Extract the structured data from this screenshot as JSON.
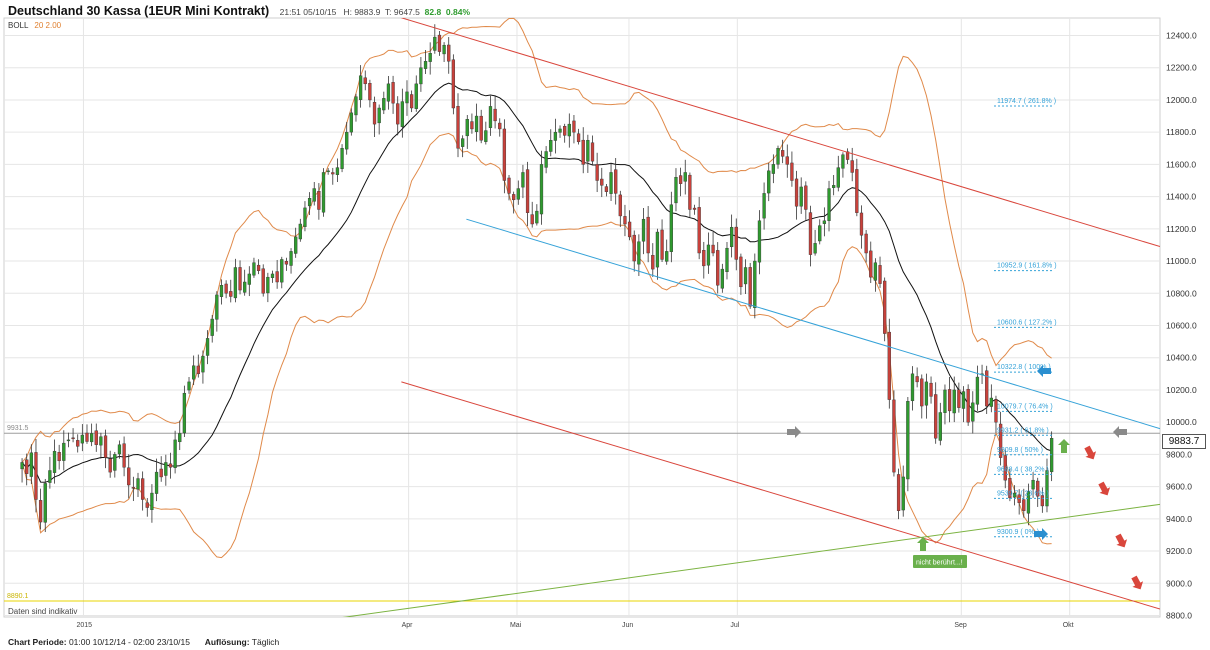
{
  "header": {
    "title": "Deutschland 30 Kassa (1EUR Mini Kontrakt)",
    "datetime": "21:51 05/10/15",
    "high": "H: 9883.9",
    "low": "T: 9647.5",
    "change": "82.8",
    "change_pct": "0.84%"
  },
  "indicator": {
    "name": "BOLL",
    "params": "20 2.00"
  },
  "footer": {
    "period_label": "Chart Periode:",
    "period_value": "01:00 10/12/14 - 02:00 23/10/15",
    "resolution_label": "Auflösung:",
    "resolution_value": "Täglich"
  },
  "notes": {
    "indicative": "Daten sind indikativ",
    "not_touched": "nicht berührt...!"
  },
  "last_price": "9883.7",
  "colors": {
    "up": "#2f9a2f",
    "down": "#c8413b",
    "boll": "#e08a4a",
    "mid": "#111111",
    "channel_red": "#d9463c",
    "channel_blue": "#35a2d8",
    "trend_green": "#7cb342",
    "level_yellow": "#e8d400",
    "fib": "#35a2d8",
    "grid": "#e6e6e6"
  },
  "chart_data": {
    "type": "candlestick",
    "y_axis": {
      "min": 8800,
      "max": 12400,
      "step": 200,
      "ticks": [
        "12400.0",
        "12200.0",
        "12000.0",
        "11800.0",
        "11600.0",
        "11400.0",
        "11200.0",
        "11000.0",
        "10800.0",
        "10600.0",
        "10400.0",
        "10200.0",
        "10000.0",
        "9800.0",
        "9600.0",
        "9400.0",
        "9200.0",
        "9000.0",
        "8800.0"
      ]
    },
    "x_axis": {
      "labels": [
        {
          "text": "2015",
          "day": 22
        },
        {
          "text": "Apr",
          "day": 112
        },
        {
          "text": "Mai",
          "day": 142
        },
        {
          "text": "Jun",
          "day": 173
        },
        {
          "text": "Jul",
          "day": 203
        },
        {
          "text": "Sep",
          "day": 265
        },
        {
          "text": "Okt",
          "day": 295
        }
      ],
      "day_span": [
        0,
        320
      ]
    },
    "reference_levels": [
      {
        "label": "9931.5",
        "value": 9931.5,
        "color": "#9e9e9e"
      },
      {
        "label": "8890.1",
        "value": 8890.1,
        "color": "#e8d400"
      }
    ],
    "fibonacci": [
      {
        "label": "11974.7 ( 261.8% )",
        "value": 11974.7
      },
      {
        "label": "10952.9 ( 161.8% )",
        "value": 10952.9
      },
      {
        "label": "10600.6 ( 127.2% )",
        "value": 10600.6
      },
      {
        "label": "10322.8 ( 100% )",
        "value": 10322.8
      },
      {
        "label": "10079.7 ( 76.4% )",
        "value": 10079.7
      },
      {
        "label": "9931.2 ( 61.8% )",
        "value": 9931.2
      },
      {
        "label": "9809.8 ( 50% )",
        "value": 9809.8
      },
      {
        "label": "9688.4 ( 38.2% )",
        "value": 9688.4
      },
      {
        "label": "9539.7 ( 23.6% )",
        "value": 9539.7
      },
      {
        "label": "9300.9 ( 0% )",
        "value": 9300.9
      }
    ],
    "trend_lines": [
      {
        "name": "upper red channel",
        "color": "#d9463c",
        "from": {
          "day": 110,
          "value": 12510
        },
        "to": {
          "day": 320,
          "value": 11090
        }
      },
      {
        "name": "lower red channel",
        "color": "#d9463c",
        "from": {
          "day": 110,
          "value": 10250
        },
        "to": {
          "day": 320,
          "value": 8840
        }
      },
      {
        "name": "blue trend line",
        "color": "#35a2d8",
        "from": {
          "day": 128,
          "value": 11260
        },
        "to": {
          "day": 320,
          "value": 9960
        }
      },
      {
        "name": "green support line",
        "color": "#7cb342",
        "from": {
          "day": 88,
          "value": 8770
        },
        "to": {
          "day": 320,
          "value": 9490
        }
      }
    ],
    "candles_close": [
      9750,
      9680,
      9810,
      9520,
      9380,
      9620,
      9700,
      9820,
      9760,
      9870,
      9890,
      9900,
      9850,
      9920,
      9880,
      9930,
      9860,
      9910,
      9780,
      9690,
      9800,
      9860,
      9720,
      9610,
      9590,
      9650,
      9520,
      9470,
      9560,
      9690,
      9660,
      9750,
      9720,
      9890,
      9930,
      10180,
      10250,
      10350,
      10300,
      10410,
      10520,
      10640,
      10790,
      10850,
      10800,
      10780,
      10960,
      10820,
      10870,
      10920,
      10990,
      10940,
      10800,
      10900,
      10920,
      10870,
      11010,
      10980,
      11060,
      11150,
      11230,
      11330,
      11390,
      11450,
      11320,
      11550,
      11560,
      11540,
      11580,
      11700,
      11800,
      11920,
      12020,
      12150,
      12100,
      12000,
      11850,
      11950,
      12010,
      12100,
      11980,
      11850,
      11990,
      12050,
      11950,
      12100,
      12200,
      12240,
      12290,
      12390,
      12300,
      12340,
      12240,
      11950,
      11700,
      11760,
      11880,
      11820,
      11900,
      11750,
      11810,
      11960,
      11870,
      11820,
      11500,
      11420,
      11380,
      11450,
      11550,
      11300,
      11230,
      11310,
      11600,
      11680,
      11750,
      11800,
      11820,
      11780,
      11850,
      11800,
      11740,
      11600,
      11750,
      11620,
      11500,
      11470,
      11430,
      11550,
      11420,
      11280,
      11230,
      11150,
      11000,
      11120,
      11260,
      11050,
      10950,
      11180,
      11010,
      11060,
      11350,
      11520,
      11480,
      11550,
      11320,
      11320,
      11050,
      10970,
      11100,
      11050,
      10850,
      10950,
      11080,
      11210,
      11010,
      10840,
      10960,
      10720,
      11000,
      11250,
      11420,
      11560,
      11600,
      11700,
      11650,
      11600,
      11500,
      11340,
      11460,
      11320,
      11040,
      11110,
      11220,
      11250,
      11450,
      11470,
      11580,
      11660,
      11630,
      11550,
      11300,
      11160,
      11050,
      10900,
      10990,
      10860,
      10550,
      10140,
      9690,
      9450,
      9660,
      10130,
      10300,
      10250,
      10100,
      10250,
      10160,
      9900,
      10060,
      10200,
      10070,
      10200,
      10090,
      10190,
      10000,
      10120,
      10280,
      10300,
      10100,
      10150,
      10000,
      9780,
      9640,
      9530,
      9560,
      9500,
      9450,
      9570,
      9640,
      9540,
      9480,
      9700,
      9900
    ]
  }
}
